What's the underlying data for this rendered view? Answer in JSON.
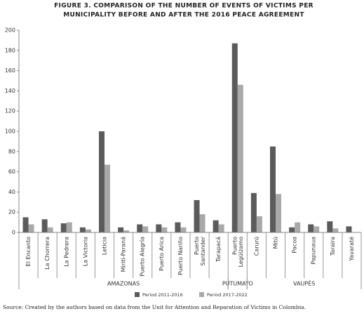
{
  "chart_data": {
    "type": "bar",
    "title": [
      "FIGURE 3. COMPARISON OF THE NUMBER OF EVENTS OF VICTIMS PER",
      "MUNICIPALITY BEFORE AND AFTER THE 2016 PEACE AGREEMENT"
    ],
    "categories": [
      "El Encanto",
      "La Chorrera",
      "La Pedrera",
      "La Victoria",
      "Leticia",
      "Mirití-Paraná",
      "Puerto Alegría",
      "Puerto Arica",
      "Puerto Nariño",
      "Puerto Santander",
      "Tarapacá",
      "Puerto Legüízamo",
      "Carurú",
      "Mitú",
      "Pacoa",
      "Papunaua",
      "Taraira",
      "Yavaraté"
    ],
    "groups": [
      {
        "name": "AMAZONAS",
        "start": 0,
        "end": 10
      },
      {
        "name": "PUTUMAYO",
        "start": 11,
        "end": 11
      },
      {
        "name": "VAUPÉS",
        "start": 12,
        "end": 17
      }
    ],
    "series": [
      {
        "name": "Period 2011-2016",
        "color": "#5b5b5b",
        "values": [
          15,
          13,
          9,
          5,
          100,
          5,
          8,
          8,
          10,
          32,
          12,
          187,
          39,
          85,
          5,
          8,
          11,
          6
        ]
      },
      {
        "name": "Period 2017-2022",
        "color": "#a9a9a9",
        "values": [
          8,
          5,
          10,
          3,
          67,
          2,
          6,
          5,
          5,
          18,
          8,
          146,
          16,
          38,
          10,
          6,
          4,
          0
        ]
      }
    ],
    "ylim": [
      0,
      200
    ],
    "yticks": [
      0,
      20,
      40,
      60,
      80,
      100,
      120,
      140,
      160,
      180,
      200
    ],
    "grid": false,
    "source": "Source: Created by the authors based on data from the Unit for Attention and Reparation of Victims in Colombia."
  }
}
